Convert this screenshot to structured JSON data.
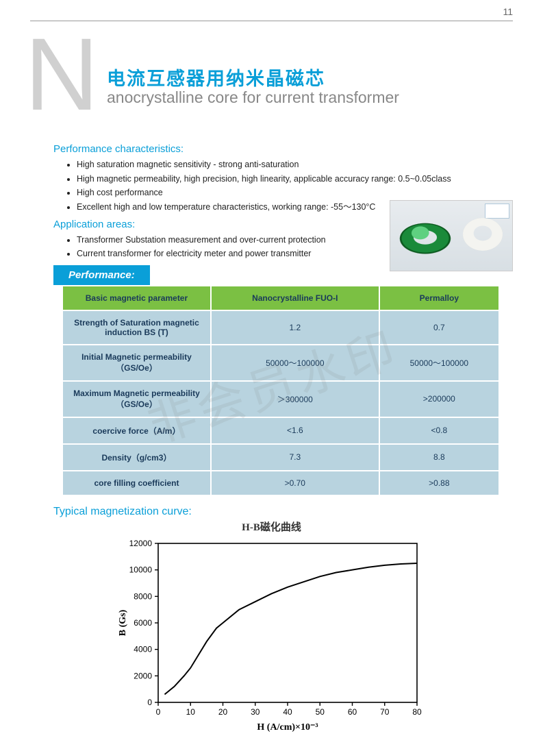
{
  "page_number": "11",
  "header": {
    "big_letter": "N",
    "title_cn": "电流互感器用纳米晶磁芯",
    "title_en": "anocrystalline core for current transformer"
  },
  "perf_char_label": "Performance characteristics:",
  "perf_char_bullets": [
    "High saturation magnetic sensitivity - strong anti-saturation",
    "High magnetic permeability, high precision, high linearity, applicable accuracy range: 0.5~0.05class",
    "High cost performance",
    "Excellent high and low temperature characteristics, working range: -55～130°C"
  ],
  "app_label": "Application areas:",
  "app_bullets": [
    "Transformer Substation measurement and over-current protection",
    "Current transformer for electricity meter and power transmitter"
  ],
  "performance_tab": "Performance:",
  "perf_table": {
    "columns": [
      "Basic magnetic parameter",
      "Nanocrystalline FUO-I",
      "Permalloy"
    ],
    "rows": [
      [
        "Strength of Saturation magnetic induction BS (T)",
        "1.2",
        "0.7"
      ],
      [
        "Initial Magnetic permeability（GS/Oe）",
        "50000～100000",
        "50000～100000"
      ],
      [
        "Maximum Magnetic permeability（GS/Oe）",
        "＞300000",
        ">200000"
      ],
      [
        "coercive force（A/m）",
        "<1.6",
        "<0.8"
      ],
      [
        "Density（g/cm3）",
        "7.3",
        "8.8"
      ],
      [
        "core filling coefficient",
        ">0.70",
        ">0.88"
      ]
    ],
    "header_bg": "#7bc043",
    "cell_bg": "#b8d3df",
    "text_color": "#1a3a5a",
    "col_widths_pct": [
      34,
      33,
      33
    ]
  },
  "curve_label": "Typical magnetization curve:",
  "watermark_text": "非会员水印",
  "chart": {
    "type": "line",
    "title": "H-B磁化曲线",
    "xlabel": "H (A/cm)×10⁻³",
    "ylabel": "B (Gs)",
    "xlim": [
      0,
      80
    ],
    "ylim": [
      0,
      12000
    ],
    "xtick_step": 10,
    "ytick_step": 2000,
    "xticks": [
      0,
      10,
      20,
      30,
      40,
      50,
      60,
      70,
      80
    ],
    "yticks": [
      0,
      2000,
      4000,
      6000,
      8000,
      10000,
      12000
    ],
    "line_color": "#000000",
    "line_width": 2,
    "axis_color": "#000000",
    "background_color": "#ffffff",
    "tick_fontsize": 12,
    "label_fontsize": 14,
    "title_fontsize": 15,
    "data": [
      {
        "x": 2,
        "y": 600
      },
      {
        "x": 5,
        "y": 1200
      },
      {
        "x": 8,
        "y": 2000
      },
      {
        "x": 10,
        "y": 2600
      },
      {
        "x": 12,
        "y": 3400
      },
      {
        "x": 15,
        "y": 4600
      },
      {
        "x": 18,
        "y": 5600
      },
      {
        "x": 20,
        "y": 6000
      },
      {
        "x": 25,
        "y": 7000
      },
      {
        "x": 30,
        "y": 7600
      },
      {
        "x": 35,
        "y": 8200
      },
      {
        "x": 40,
        "y": 8700
      },
      {
        "x": 45,
        "y": 9100
      },
      {
        "x": 50,
        "y": 9500
      },
      {
        "x": 55,
        "y": 9800
      },
      {
        "x": 60,
        "y": 10000
      },
      {
        "x": 65,
        "y": 10200
      },
      {
        "x": 70,
        "y": 10350
      },
      {
        "x": 75,
        "y": 10450
      },
      {
        "x": 80,
        "y": 10500
      }
    ]
  },
  "colors": {
    "primary_blue": "#0a9fd8",
    "green": "#7bc043",
    "table_cell": "#b8d3df",
    "grey_letter": "#d0d0d0"
  }
}
